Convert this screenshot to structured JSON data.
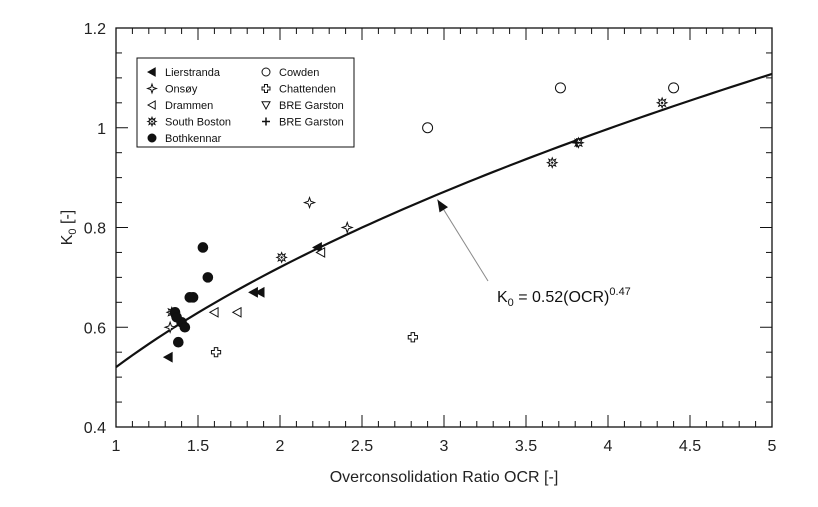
{
  "chart_data": {
    "type": "scatter",
    "title": "",
    "xlabel": "Overconsolidation Ratio OCR [-]",
    "ylabel": "K",
    "ylabel_sub": "0",
    "ylabel_unit": " [-]",
    "xlim": [
      1,
      5
    ],
    "ylim": [
      0.4,
      1.2
    ],
    "x_ticks": [
      1,
      1.5,
      2,
      2.5,
      3,
      3.5,
      4,
      4.5,
      5
    ],
    "x_tick_labels": [
      "1",
      "1.5",
      "2",
      "2.5",
      "3",
      "3.5",
      "4",
      "4.5",
      "5"
    ],
    "y_ticks": [
      0.4,
      0.6,
      0.8,
      1.0,
      1.2
    ],
    "y_tick_labels": [
      "0.4",
      "0.6",
      "0.8",
      "1",
      "1.2"
    ],
    "grid": false,
    "legend_position": "top-left",
    "series": [
      {
        "name": "Lierstranda",
        "marker": "triangle-left-filled",
        "points": [
          [
            1.32,
            0.54
          ],
          [
            1.84,
            0.67
          ],
          [
            1.88,
            0.67
          ],
          [
            2.23,
            0.76
          ]
        ]
      },
      {
        "name": "Onsøy",
        "marker": "star4",
        "points": [
          [
            1.33,
            0.6
          ],
          [
            2.18,
            0.85
          ],
          [
            2.41,
            0.8
          ]
        ]
      },
      {
        "name": "Drammen",
        "marker": "triangle-left-open",
        "points": [
          [
            1.6,
            0.63
          ],
          [
            1.74,
            0.63
          ],
          [
            2.25,
            0.75
          ]
        ]
      },
      {
        "name": "South Boston",
        "marker": "starburst",
        "points": [
          [
            1.34,
            0.63
          ],
          [
            2.01,
            0.74
          ],
          [
            3.66,
            0.93
          ],
          [
            3.82,
            0.97
          ],
          [
            4.33,
            1.05
          ]
        ]
      },
      {
        "name": "Bothkennar",
        "marker": "circle-filled",
        "points": [
          [
            1.36,
            0.63
          ],
          [
            1.38,
            0.57
          ],
          [
            1.4,
            0.61
          ],
          [
            1.42,
            0.6
          ],
          [
            1.45,
            0.66
          ],
          [
            1.47,
            0.66
          ],
          [
            1.53,
            0.76
          ],
          [
            1.56,
            0.7
          ],
          [
            1.37,
            0.62
          ]
        ]
      },
      {
        "name": "Cowden",
        "marker": "circle-open",
        "points": [
          [
            2.9,
            1.0
          ],
          [
            3.71,
            1.08
          ],
          [
            4.4,
            1.08
          ]
        ]
      },
      {
        "name": "Chattenden",
        "marker": "cross-open",
        "points": [
          [
            1.61,
            0.55
          ],
          [
            2.81,
            0.58
          ]
        ]
      },
      {
        "name": "BRE Garston",
        "marker": "triangle-down-open",
        "points": []
      },
      {
        "name": "BRE Garston",
        "marker": "plus",
        "points": [
          [
            3.81,
            0.97
          ]
        ]
      }
    ],
    "fit_curve": {
      "a": 0.52,
      "b": 0.47,
      "x_range": [
        1,
        5
      ]
    },
    "annotation": {
      "prefix": "K",
      "sub": "0",
      "mid": " = 0.52(OCR)",
      "sup": "0.47",
      "arrow_to": [
        2.96,
        0.856
      ]
    }
  }
}
